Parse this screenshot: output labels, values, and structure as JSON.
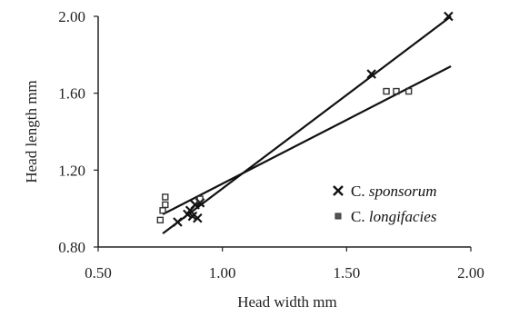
{
  "chart_data": {
    "type": "scatter",
    "xlabel": "Head width mm",
    "ylabel": "Head length mm",
    "xlim": [
      0.5,
      2.0
    ],
    "ylim": [
      0.8,
      2.0
    ],
    "x_ticks": [
      "0.50",
      "1.00",
      "1.50",
      "2.00"
    ],
    "y_ticks": [
      "0.80",
      "1.20",
      "1.60",
      "2.00"
    ],
    "x_tick_values": [
      0.5,
      1.0,
      1.5,
      2.0
    ],
    "y_tick_values": [
      0.8,
      1.2,
      1.6,
      2.0
    ],
    "grid": false,
    "legend_position": "lower-right",
    "series": [
      {
        "name": "C. sponsorum",
        "legend_prefix": "C.",
        "legend_italic": "sponsorum",
        "marker": "x",
        "color": "#111111",
        "points": [
          [
            0.82,
            0.93
          ],
          [
            0.86,
            0.97
          ],
          [
            0.87,
            0.99
          ],
          [
            0.88,
            0.96
          ],
          [
            0.89,
            1.02
          ],
          [
            0.9,
            0.95
          ],
          [
            0.91,
            1.03
          ],
          [
            1.6,
            1.7
          ],
          [
            1.91,
            2.0
          ]
        ],
        "trendline": [
          [
            0.76,
            0.87
          ],
          [
            1.92,
            2.0
          ]
        ]
      },
      {
        "name": "C. longifacies",
        "legend_prefix": "C.",
        "legend_italic": "longifacies",
        "marker": "square",
        "color": "#333333",
        "points": [
          [
            0.75,
            0.94
          ],
          [
            0.76,
            0.99
          ],
          [
            0.77,
            1.02
          ],
          [
            0.77,
            1.06
          ],
          [
            0.91,
            1.05
          ],
          [
            1.66,
            1.61
          ],
          [
            1.7,
            1.61
          ],
          [
            1.75,
            1.61
          ]
        ],
        "trendline": [
          [
            0.76,
            0.97
          ],
          [
            1.92,
            1.74
          ]
        ]
      }
    ]
  }
}
